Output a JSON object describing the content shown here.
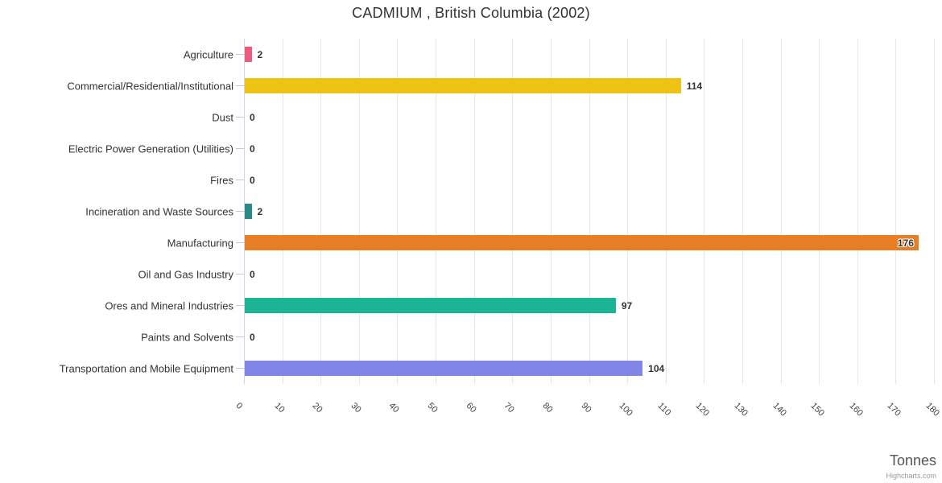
{
  "chart_data": {
    "type": "bar",
    "orientation": "horizontal",
    "title": "CADMIUM , British Columbia (2002)",
    "categories": [
      "Agriculture",
      "Commercial/Residential/Institutional",
      "Dust",
      "Electric Power Generation (Utilities)",
      "Fires",
      "Incineration and Waste Sources",
      "Manufacturing",
      "Oil and Gas Industry",
      "Ores and Mineral Industries",
      "Paints and Solvents",
      "Transportation and Mobile Equipment"
    ],
    "values": [
      2,
      114,
      0,
      0,
      0,
      2,
      176,
      0,
      97,
      0,
      104
    ],
    "bar_colors": [
      "#EA5C7D",
      "#EEC313",
      null,
      null,
      null,
      "#2B8A87",
      "#E87E23",
      null,
      "#1BB494",
      null,
      "#8185E8"
    ],
    "data_labels": [
      "2",
      "114",
      "0",
      "0",
      "0",
      "2",
      "176",
      "0",
      "97",
      "0",
      "104"
    ],
    "xlabel": "Tonnes",
    "ylabel": "",
    "xlim": [
      0,
      180
    ],
    "tick_interval": 10,
    "x_ticks": [
      0,
      10,
      20,
      30,
      40,
      50,
      60,
      70,
      80,
      90,
      100,
      110,
      120,
      130,
      140,
      150,
      160,
      170,
      180
    ],
    "grid": true,
    "legend": "none",
    "credit": "Highcharts.com"
  },
  "colors": {
    "background": "#ffffff",
    "gridline": "#e6e6e6",
    "axis_line": "#ccd6eb",
    "category_tick": "#c8c8c8",
    "title_text": "#333333",
    "label_text": "#333333",
    "tick_text": "#444444",
    "axis_title_text": "#555555",
    "credit_text": "#999999"
  }
}
